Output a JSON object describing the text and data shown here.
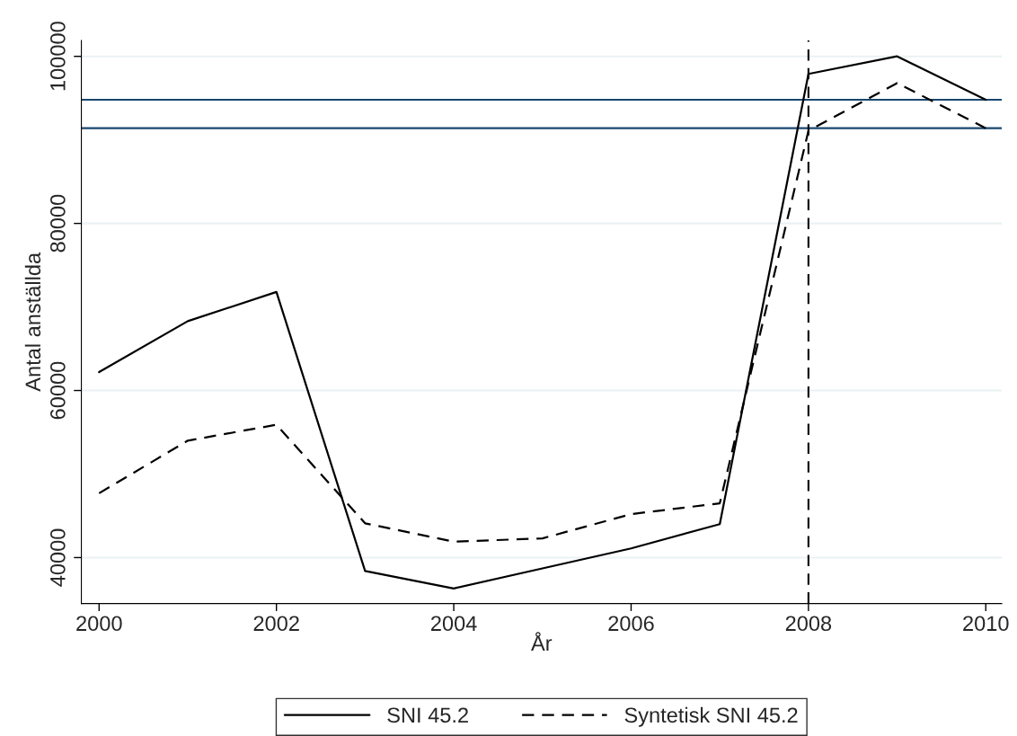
{
  "chart_data": {
    "type": "line",
    "xlabel": "År",
    "ylabel": "Antal anställda",
    "x": [
      2000,
      2001,
      2002,
      2003,
      2004,
      2005,
      2006,
      2007,
      2008,
      2009,
      2010
    ],
    "series": [
      {
        "name": "SNI 45.2",
        "color": "#000000",
        "line_style": "solid",
        "values": [
          62200,
          68300,
          71800,
          38400,
          36300,
          38700,
          41100,
          44000,
          97900,
          100000,
          94800
        ]
      },
      {
        "name": "Syntetisk SNI 45.2",
        "color": "#000000",
        "line_style": "dashed",
        "values": [
          47700,
          54000,
          55900,
          44100,
          41900,
          42300,
          45200,
          46500,
          91100,
          96800,
          91400
        ]
      }
    ],
    "xlim": [
      1999.8,
      2010.18
    ],
    "xticks": [
      2000,
      2002,
      2004,
      2006,
      2008,
      2010
    ],
    "ylim": [
      34500,
      101900
    ],
    "yticks": [
      40000,
      60000,
      80000,
      100000
    ],
    "ref_lines": [
      {
        "axis": "y",
        "value": 94800,
        "color": "#1a476f",
        "line_style": "solid"
      },
      {
        "axis": "y",
        "value": 91400,
        "color": "#1a476f",
        "line_style": "solid"
      },
      {
        "axis": "x",
        "value": 2008,
        "color": "#000000",
        "line_style": "dashed"
      }
    ],
    "grid": "y",
    "legend": "bottom",
    "marker": "none"
  }
}
